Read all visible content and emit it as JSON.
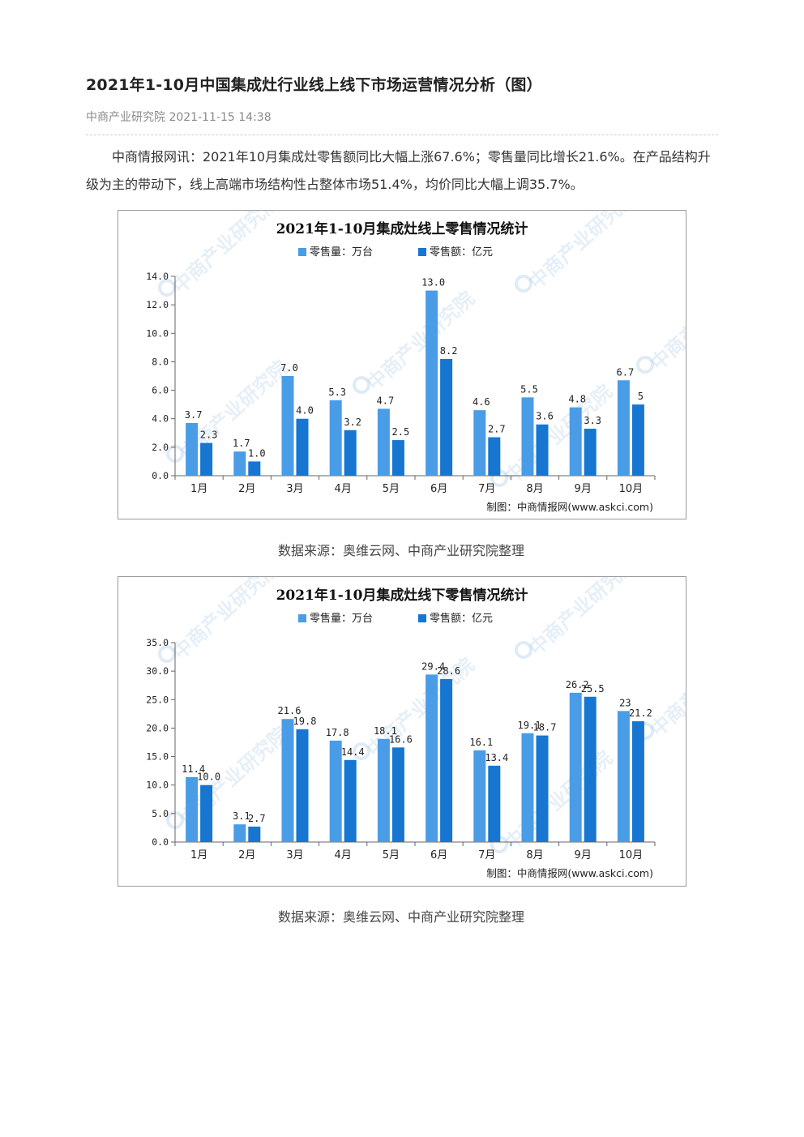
{
  "article": {
    "title": "2021年1-10月中国集成灶行业线上线下市场运营情况分析（图）",
    "source_name": "中商产业研究院",
    "datetime": "2021-11-15 14:38",
    "lead": "中商情报网讯：2021年10月集成灶零售额同比大幅上涨67.6%；零售量同比增长21.6%。在产品结构升级为主的带动下，线上高端市场结构性占整体市场51.4%，均价同比大幅上调35.7%。"
  },
  "captions": [
    "数据来源：奥维云网、中商产业研究院整理",
    "数据来源：奥维云网、中商产业研究院整理"
  ],
  "colors": {
    "series1": "#4a9ce6",
    "series2": "#1676d1"
  },
  "chart_data": [
    {
      "type": "bar",
      "title": "2021年1-10月集成灶线上零售情况统计",
      "categories": [
        "1月",
        "2月",
        "3月",
        "4月",
        "5月",
        "6月",
        "7月",
        "8月",
        "9月",
        "10月"
      ],
      "series": [
        {
          "name": "零售量：万台",
          "values": [
            3.7,
            1.7,
            7.0,
            5.3,
            4.7,
            13.0,
            4.6,
            5.5,
            4.8,
            6.7
          ],
          "labels": [
            "3.7",
            "1.7",
            "7.0",
            "5.3",
            "4.7",
            "13.0",
            "4.6",
            "5.5",
            "4.8",
            "6.7"
          ]
        },
        {
          "name": "零售额：亿元",
          "values": [
            2.3,
            1.0,
            4.0,
            3.2,
            2.5,
            8.2,
            2.7,
            3.6,
            3.3,
            5
          ],
          "labels": [
            "2.3",
            "1.0",
            "4.0",
            "3.2",
            "2.5",
            "8.2",
            "2.7",
            "3.6",
            "3.3",
            "5"
          ]
        }
      ],
      "ylim": [
        0,
        14
      ],
      "yticks": [
        "0.0",
        "2.0",
        "4.0",
        "6.0",
        "8.0",
        "10.0",
        "12.0",
        "14.0"
      ],
      "credit": "制图：中商情报网(www.askci.com)",
      "watermark": "中商产业研究院",
      "grid": false,
      "legend": "top"
    },
    {
      "type": "bar",
      "title": "2021年1-10月集成灶线下零售情况统计",
      "categories": [
        "1月",
        "2月",
        "3月",
        "4月",
        "5月",
        "6月",
        "7月",
        "8月",
        "9月",
        "10月"
      ],
      "series": [
        {
          "name": "零售量：万台",
          "values": [
            11.4,
            3.1,
            21.6,
            17.8,
            18.1,
            29.4,
            16.1,
            19.1,
            26.2,
            23
          ],
          "labels": [
            "11.4",
            "3.1",
            "21.6",
            "17.8",
            "18.1",
            "29.4",
            "16.1",
            "19.1",
            "26.2",
            "23"
          ]
        },
        {
          "name": "零售额：亿元",
          "values": [
            10.0,
            2.7,
            19.8,
            14.4,
            16.6,
            28.6,
            13.4,
            18.7,
            25.5,
            21.2
          ],
          "labels": [
            "10.0",
            "2.7",
            "19.8",
            "14.4",
            "16.6",
            "28.6",
            "13.4",
            "18.7",
            "25.5",
            "21.2"
          ]
        }
      ],
      "ylim": [
        0,
        35
      ],
      "yticks": [
        "0.0",
        "5.0",
        "10.0",
        "15.0",
        "20.0",
        "25.0",
        "30.0",
        "35.0"
      ],
      "credit": "制图：中商情报网(www.askci.com)",
      "watermark": "中商产业研究院",
      "grid": false,
      "legend": "top"
    }
  ]
}
